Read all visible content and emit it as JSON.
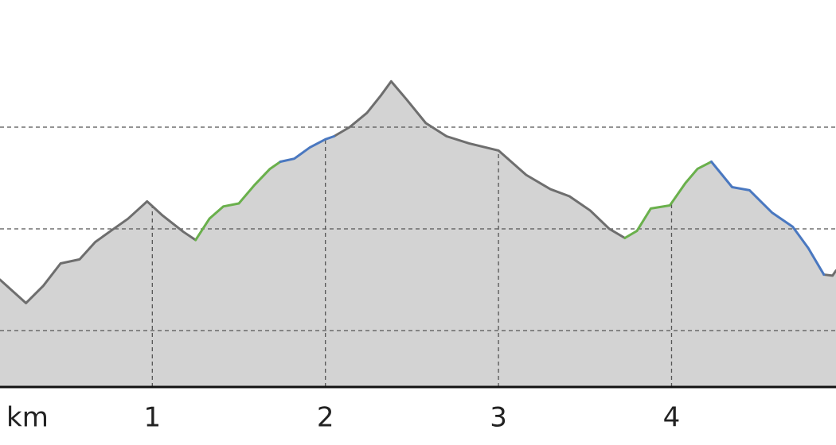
{
  "chart_data": {
    "type": "line",
    "x_label": "km",
    "x": [
      0.12,
      0.27,
      0.37,
      0.47,
      0.58,
      0.67,
      0.76,
      0.86,
      0.97,
      1.06,
      1.18,
      1.25,
      1.33,
      1.41,
      1.5,
      1.59,
      1.68,
      1.74,
      1.82,
      1.91,
      2.0,
      2.05,
      2.14,
      2.24,
      2.32,
      2.38,
      2.47,
      2.58,
      2.7,
      2.83,
      3.0,
      3.16,
      3.3,
      3.41,
      3.53,
      3.64,
      3.73,
      3.8,
      3.88,
      3.99,
      4.08,
      4.15,
      4.23,
      4.35,
      4.45,
      4.58,
      4.7,
      4.79,
      4.88,
      4.93,
      4.95
    ],
    "series": [
      {
        "color": "#6e6e6e",
        "values": [
          150,
          127,
          144,
          166,
          170,
          187,
          198,
          210,
          227,
          213,
          197,
          189,
          null,
          null,
          null,
          null,
          null,
          null,
          null,
          null,
          null,
          291,
          300,
          314,
          331,
          345,
          327,
          304,
          291,
          284,
          277,
          253,
          239,
          232,
          218,
          200,
          191,
          null,
          null,
          null,
          null,
          null,
          null,
          null,
          null,
          null,
          null,
          null,
          155,
          154,
          159
        ]
      },
      {
        "color": "#6ab04c",
        "values": [
          null,
          null,
          null,
          null,
          null,
          null,
          null,
          null,
          null,
          null,
          null,
          189,
          210,
          222,
          225,
          243,
          259,
          266,
          null,
          null,
          null,
          null,
          null,
          null,
          null,
          null,
          null,
          null,
          null,
          null,
          null,
          null,
          null,
          null,
          null,
          null,
          191,
          198,
          220,
          223,
          245,
          259,
          266,
          null,
          null,
          null,
          null,
          null,
          null,
          null,
          null
        ]
      },
      {
        "color": "#4a78c0",
        "values": [
          null,
          null,
          null,
          null,
          null,
          null,
          null,
          null,
          null,
          null,
          null,
          null,
          null,
          null,
          null,
          null,
          null,
          266,
          269,
          280,
          288,
          291,
          null,
          null,
          null,
          null,
          null,
          null,
          null,
          null,
          null,
          null,
          null,
          null,
          null,
          null,
          null,
          null,
          null,
          null,
          null,
          null,
          266,
          241,
          238,
          216,
          202,
          181,
          155,
          null,
          null
        ]
      }
    ],
    "area_color": "#d3d3d3",
    "xlim": [
      0.12,
      4.95
    ],
    "ylim": [
      44.5,
      425
    ],
    "xticks": [
      1,
      2,
      3,
      4
    ],
    "grid_lines": [
      100,
      200,
      300
    ]
  }
}
